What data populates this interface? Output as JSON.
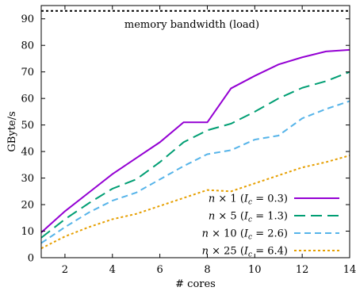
{
  "chart_data": {
    "type": "line",
    "xlabel": "# cores",
    "ylabel": "GByte/s",
    "xlim": [
      1,
      14
    ],
    "ylim": [
      0,
      95
    ],
    "x_ticks": [
      2,
      4,
      6,
      8,
      10,
      12,
      14
    ],
    "y_ticks": [
      0,
      10,
      20,
      30,
      40,
      50,
      60,
      70,
      80,
      90
    ],
    "grid": false,
    "legend_position": "bottom-right",
    "reference_line": {
      "label": "memory bandwidth (load)",
      "y": 93,
      "color": "#000000",
      "style": "dotted"
    },
    "x": [
      1,
      2,
      3,
      4,
      5,
      6,
      7,
      8,
      9,
      10,
      11,
      12,
      13,
      14
    ],
    "series": [
      {
        "name": "n × 1 (Ic = 0.3)",
        "color": "#9400d3",
        "style": "solid",
        "values": [
          9.5,
          17.5,
          24.5,
          31.5,
          37.5,
          43.5,
          51,
          51,
          63.8,
          68.5,
          72.8,
          75.5,
          77.7,
          78.3
        ]
      },
      {
        "name": "n × 5 (Ic = 1.3)",
        "color": "#009e73",
        "style": "dashed",
        "values": [
          7.5,
          14.5,
          20.5,
          26,
          29.5,
          36,
          43.5,
          48,
          50.5,
          55,
          60,
          64,
          66.5,
          70
        ]
      },
      {
        "name": "n × 10 (Ic = 2.6)",
        "color": "#56b4e9",
        "style": "dashed-short",
        "values": [
          5.5,
          11.5,
          17,
          21.5,
          24.5,
          29.5,
          34.5,
          39,
          40.5,
          44.5,
          46,
          52.5,
          56,
          59
        ]
      },
      {
        "name": "n × 25 (Ic = 6.4)",
        "color": "#e69f00",
        "style": "dotted",
        "values": [
          3.5,
          8,
          11.5,
          14.5,
          16.5,
          19.5,
          22.5,
          25.5,
          25,
          28,
          31,
          34,
          36,
          38.5
        ]
      }
    ],
    "legend": [
      {
        "prefix": "n × 1 (",
        "ic": "I",
        "sub": "c",
        "suffix": " = 0.3)"
      },
      {
        "prefix": "n × 5 (",
        "ic": "I",
        "sub": "c",
        "suffix": " = 1.3)"
      },
      {
        "prefix": "n × 10 (",
        "ic": "I",
        "sub": "c",
        "suffix": " = 2.6)"
      },
      {
        "prefix": "n × 25 (",
        "ic": "I",
        "sub": "c",
        "suffix": " = 6.4)"
      }
    ]
  }
}
